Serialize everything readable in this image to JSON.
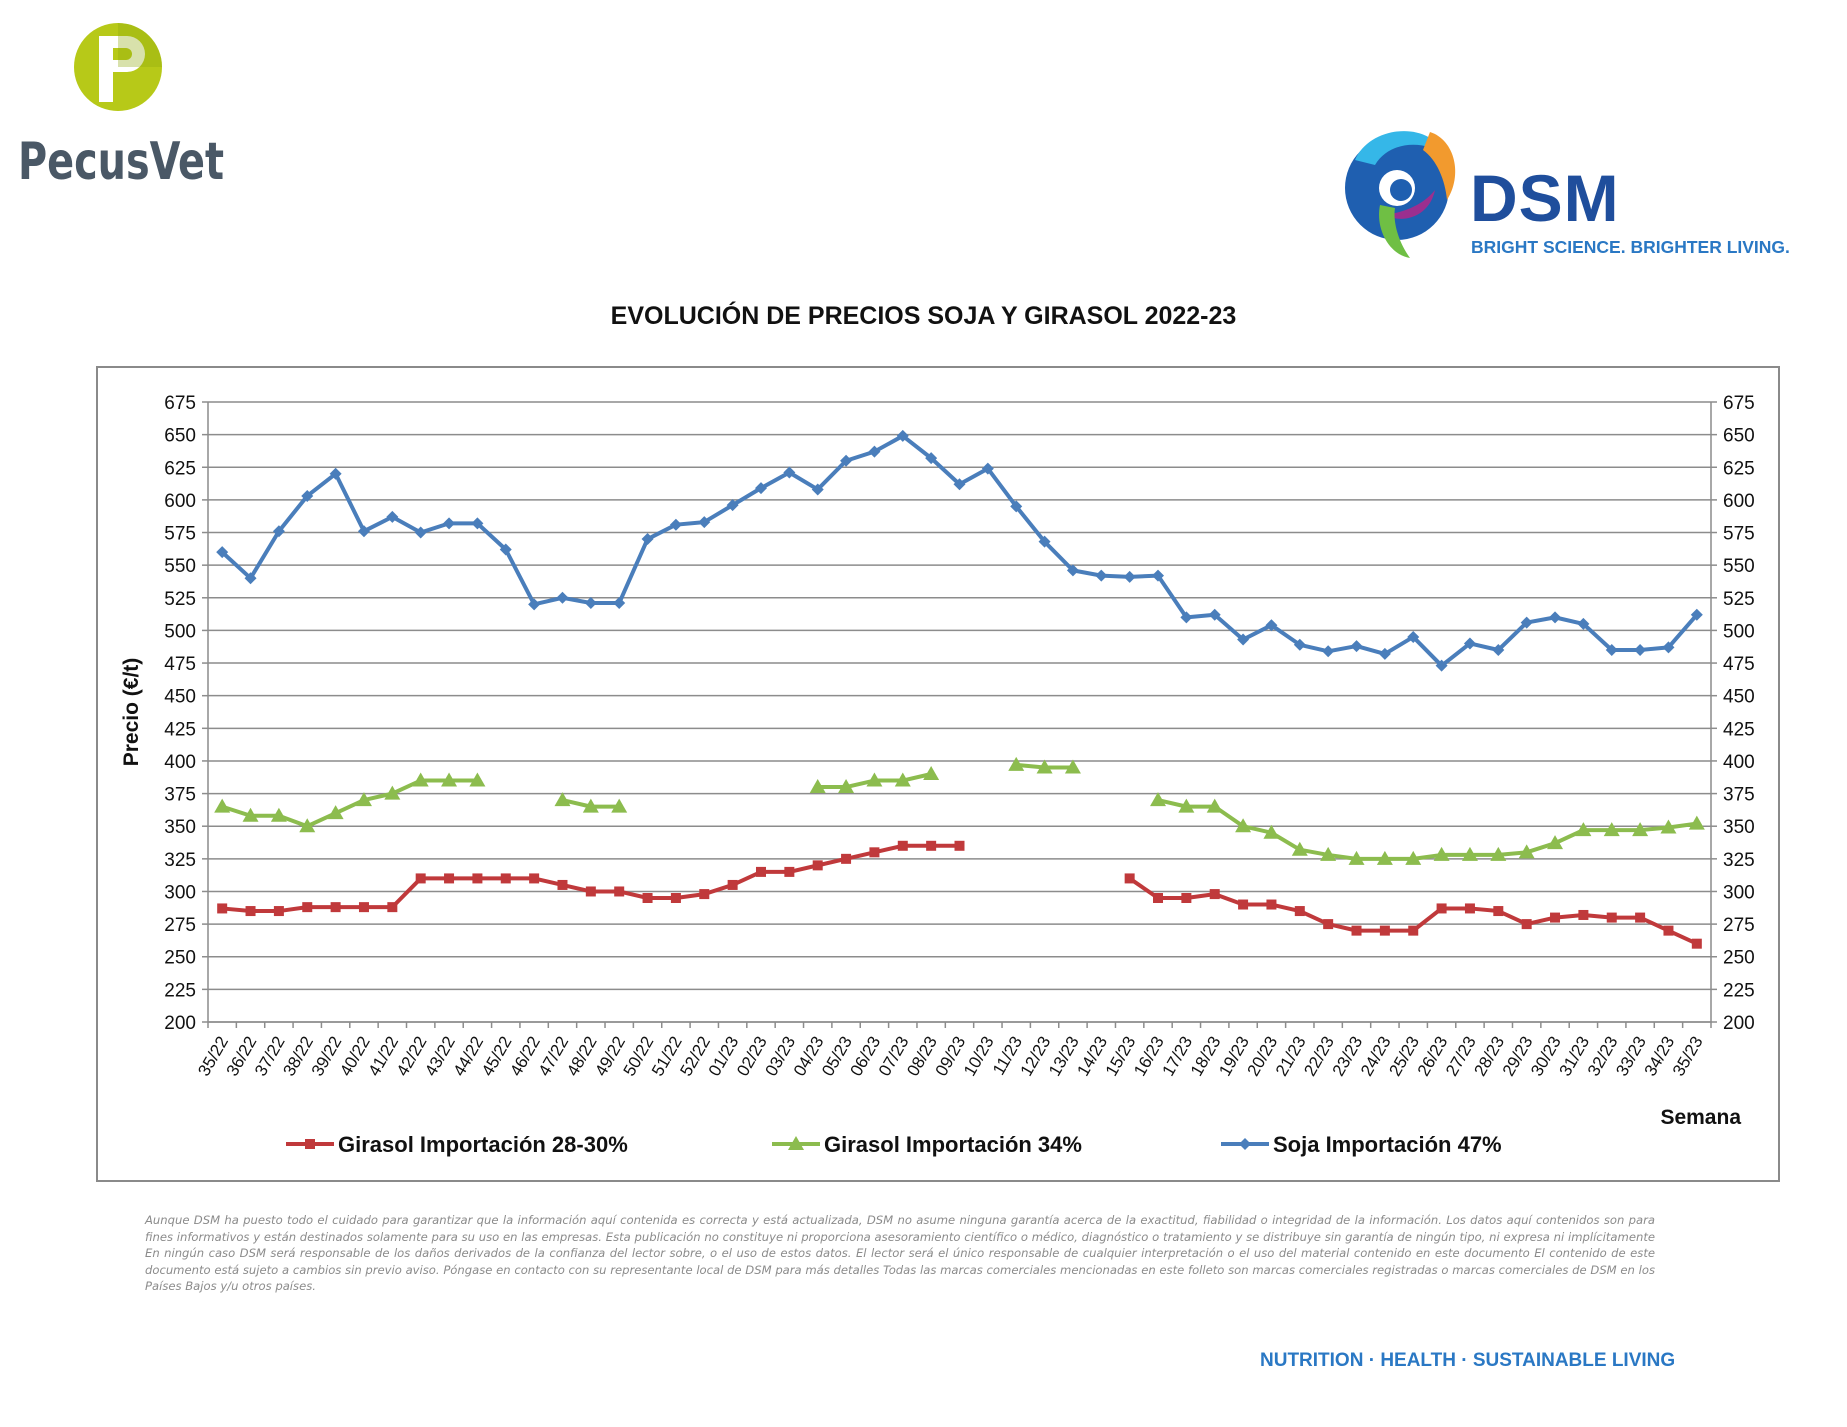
{
  "logos": {
    "left_brand": "PecusVet",
    "right_brand": "DSM",
    "right_tagline": "BRIGHT SCIENCE. BRIGHTER LIVING."
  },
  "colors": {
    "girasol_28_30": "#c0393b",
    "girasol_34": "#8cbc4e",
    "soja_47": "#4a7ebb",
    "pecusvet_green": "#b7c918",
    "pecusvet_text": "#4a5866",
    "dsm_blue": "#1f4e9c"
  },
  "chart_data": {
    "type": "line",
    "title": "EVOLUCIÓN DE PRECIOS SOJA Y GIRASOL 2022-23",
    "ylabel": "Precio (€/t)",
    "xlabel": "Semana",
    "ylim": [
      200,
      675
    ],
    "yticks": [
      "200",
      "225",
      "250",
      "275",
      "300",
      "325",
      "350",
      "375",
      "400",
      "425",
      "450",
      "475",
      "500",
      "525",
      "550",
      "575",
      "600",
      "625",
      "650",
      "675"
    ],
    "secondary_axis": true,
    "grid": "horizontal",
    "legend_position": "bottom",
    "categories": [
      "35/22",
      "36/22",
      "37/22",
      "38/22",
      "39/22",
      "40/22",
      "41/22",
      "42/22",
      "43/22",
      "44/22",
      "45/22",
      "46/22",
      "47/22",
      "48/22",
      "49/22",
      "50/22",
      "51/22",
      "52/22",
      "01/23",
      "02/23",
      "03/23",
      "04/23",
      "05/23",
      "06/23",
      "07/23",
      "08/23",
      "09/23",
      "10/23",
      "11/23",
      "12/23",
      "13/23",
      "14/23",
      "15/23",
      "16/23",
      "17/23",
      "18/23",
      "19/23",
      "20/23",
      "21/23",
      "22/23",
      "23/23",
      "24/23",
      "25/23",
      "26/23",
      "27/23",
      "28/23",
      "29/23",
      "30/23",
      "31/23",
      "32/23",
      "33/23",
      "34/23",
      "35/23"
    ],
    "series": [
      {
        "name": "Girasol Importación 28-30%",
        "marker": "square",
        "values": [
          287,
          285,
          285,
          288,
          288,
          288,
          288,
          310,
          310,
          310,
          310,
          310,
          305,
          300,
          300,
          295,
          295,
          298,
          305,
          315,
          315,
          320,
          325,
          330,
          335,
          335,
          335,
          null,
          null,
          null,
          null,
          null,
          310,
          295,
          295,
          298,
          290,
          290,
          285,
          275,
          270,
          270,
          270,
          287,
          287,
          285,
          275,
          280,
          282,
          280,
          280,
          270,
          260
        ]
      },
      {
        "name": "Girasol Importación 34%",
        "marker": "triangle",
        "values": [
          365,
          358,
          358,
          350,
          360,
          370,
          375,
          385,
          385,
          385,
          null,
          null,
          370,
          365,
          365,
          null,
          null,
          null,
          null,
          null,
          null,
          380,
          380,
          385,
          385,
          390,
          null,
          null,
          397,
          395,
          395,
          null,
          null,
          370,
          365,
          365,
          350,
          345,
          332,
          328,
          325,
          325,
          325,
          328,
          328,
          328,
          330,
          337,
          347,
          347,
          347,
          349,
          352
        ]
      },
      {
        "name": "Soja Importación 47%",
        "marker": "diamond",
        "values": [
          560,
          540,
          576,
          603,
          620,
          576,
          587,
          575,
          582,
          582,
          562,
          520,
          525,
          521,
          521,
          570,
          581,
          583,
          596,
          609,
          621,
          608,
          630,
          637,
          649,
          632,
          612,
          624,
          595,
          568,
          546,
          542,
          541,
          542,
          510,
          512,
          493,
          504,
          489,
          484,
          488,
          482,
          495,
          473,
          490,
          485,
          506,
          510,
          505,
          485,
          485,
          487,
          512
        ]
      }
    ]
  },
  "disclaimer": "Aunque DSM ha puesto todo el cuidado para garantizar que la información aquí contenida es correcta y está actualizada, DSM no asume ninguna garantía acerca de la exactitud, fiabilidad o integridad de la información. Los datos aquí contenidos son para fines informativos y están destinados solamente para su uso en las empresas. Esta publicación no constituye ni proporciona asesoramiento científico o médico, diagnóstico o tratamiento y se distribuye sin garantía de ningún tipo, ni expresa ni implícitamente En ningún caso DSM será responsable de los daños derivados de la confianza del lector sobre, o el uso de estos datos. El lector será el único responsable de cualquier interpretación o el uso del material contenido en este documento El contenido de este documento está sujeto a cambios sin previo aviso. Póngase en contacto con su representante local de DSM para más detalles Todas las marcas comerciales mencionadas en este folleto son marcas comerciales registradas o marcas comerciales de DSM en los Países Bajos y/u otros países.",
  "footer_tagline": "NUTRITION · HEALTH · SUSTAINABLE LIVING"
}
